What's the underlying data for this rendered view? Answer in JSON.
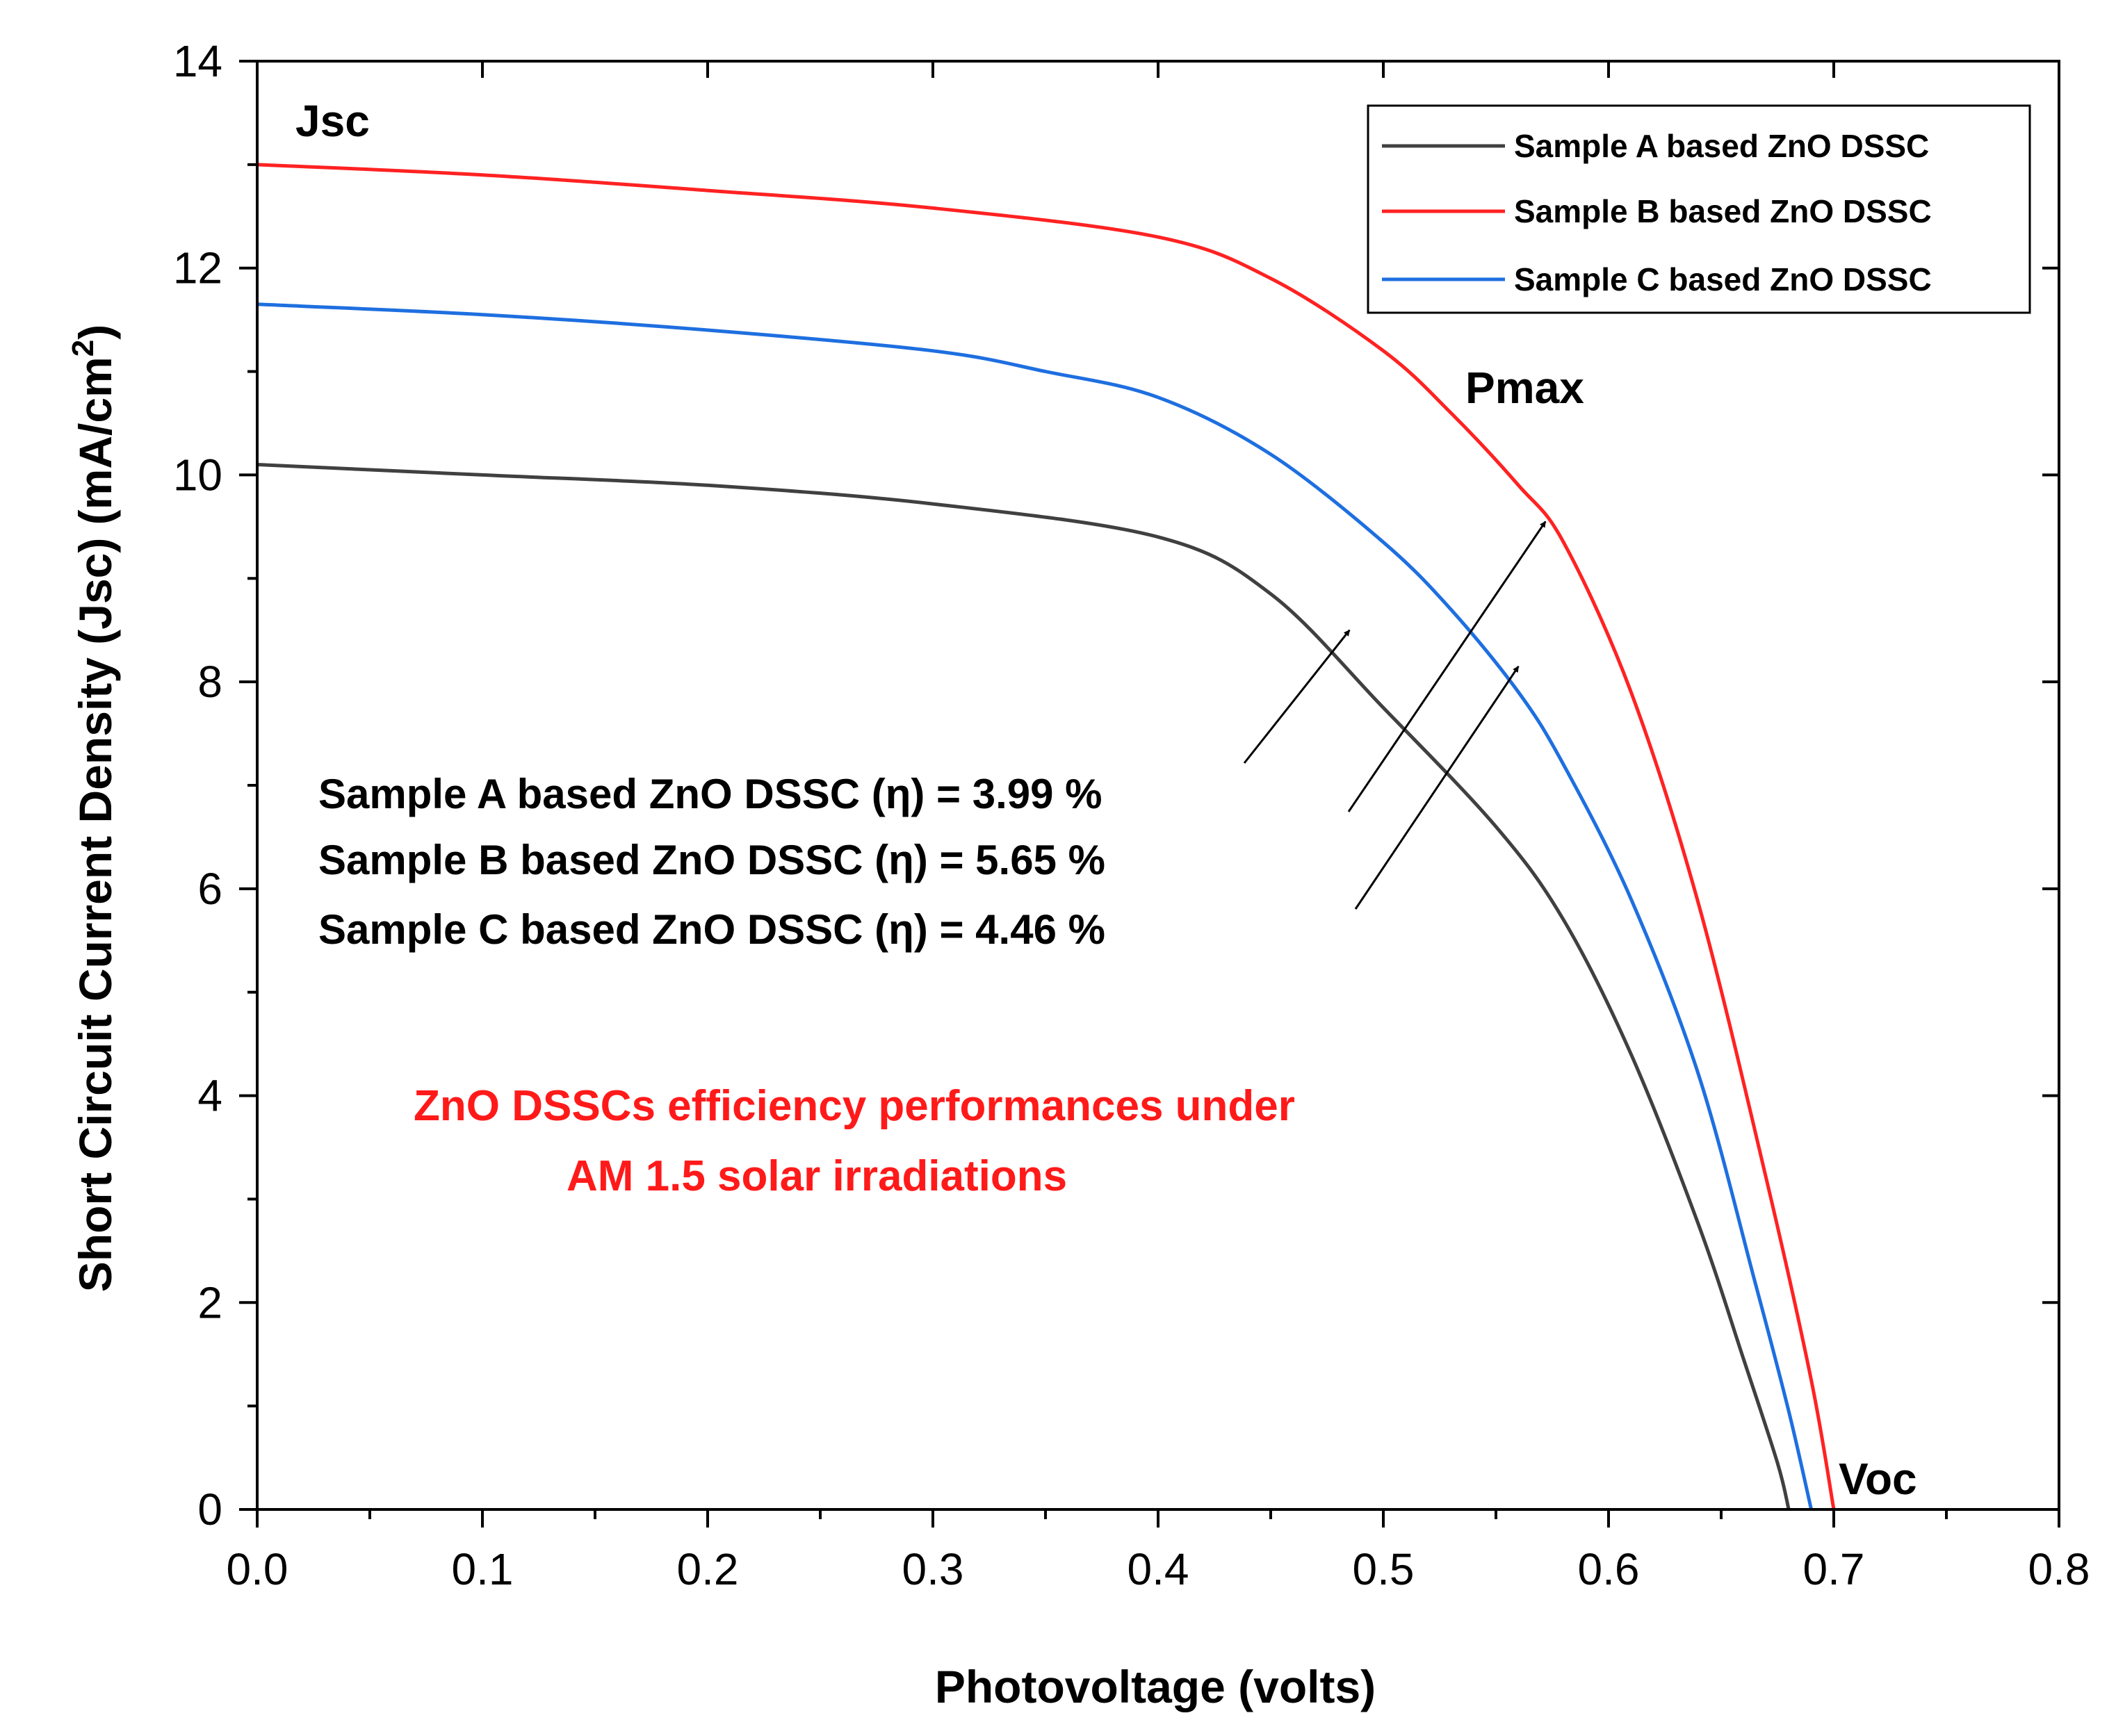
{
  "chart_data": {
    "type": "line",
    "xlabel": "Photovoltage (volts)",
    "ylabel": "Short Circuit Current Density (Jsc) (mA/cm",
    "ylabel_superscript": "2",
    "ylabel_suffix": ")",
    "xlim": [
      0.0,
      0.8
    ],
    "ylim": [
      0,
      14
    ],
    "xticks": [
      0.0,
      0.1,
      0.2,
      0.3,
      0.4,
      0.5,
      0.6,
      0.7,
      0.8
    ],
    "xtick_labels": [
      "0.0",
      "0.1",
      "0.2",
      "0.3",
      "0.4",
      "0.5",
      "0.6",
      "0.7",
      "0.8"
    ],
    "yticks": [
      0,
      2,
      4,
      6,
      8,
      10,
      12,
      14
    ],
    "ytick_labels": [
      "0",
      "2",
      "4",
      "6",
      "8",
      "10",
      "12",
      "14"
    ],
    "grid": false,
    "legend_position": "top-right",
    "series": [
      {
        "name": "Sample A based ZnO DSSC",
        "color": "#404040",
        "x": [
          0.0,
          0.1,
          0.2,
          0.3,
          0.4,
          0.45,
          0.5,
          0.55,
          0.58,
          0.61,
          0.64,
          0.66,
          0.675,
          0.68
        ],
        "y": [
          10.1,
          10.0,
          9.9,
          9.72,
          9.4,
          8.85,
          7.75,
          6.6,
          5.7,
          4.4,
          2.75,
          1.45,
          0.45,
          0.0
        ]
      },
      {
        "name": "Sample B based ZnO DSSC",
        "color": "#ff2222",
        "x": [
          0.0,
          0.1,
          0.2,
          0.3,
          0.4,
          0.45,
          0.5,
          0.53,
          0.56,
          0.58,
          0.61,
          0.64,
          0.67,
          0.69,
          0.7
        ],
        "y": [
          13.0,
          12.9,
          12.75,
          12.58,
          12.3,
          11.9,
          11.2,
          10.6,
          9.9,
          9.35,
          7.9,
          5.85,
          3.2,
          1.25,
          0.0
        ]
      },
      {
        "name": "Sample C based ZnO DSSC",
        "color": "#1e6fe0",
        "x": [
          0.0,
          0.1,
          0.2,
          0.3,
          0.35,
          0.4,
          0.45,
          0.5,
          0.53,
          0.56,
          0.58,
          0.61,
          0.64,
          0.665,
          0.68,
          0.69
        ],
        "y": [
          11.65,
          11.55,
          11.4,
          11.2,
          11.0,
          10.75,
          10.2,
          9.35,
          8.7,
          7.9,
          7.2,
          5.9,
          4.2,
          2.2,
          0.95,
          0.0
        ]
      }
    ],
    "annotations": {
      "jsc": "Jsc",
      "pmax": "Pmax",
      "voc": "Voc",
      "efficiency": [
        "Sample A based ZnO DSSC (η) = 3.99 %",
        "Sample B based ZnO DSSC (η) = 5.65 %",
        "Sample C based ZnO DSSC (η) = 4.46 %"
      ],
      "arrow_targets": [
        {
          "x": 0.485,
          "y": 8.5
        },
        {
          "x": 0.572,
          "y": 9.55
        },
        {
          "x": 0.56,
          "y": 8.15
        }
      ],
      "note_line1": "ZnO DSSCs efficiency performances under",
      "note_line2": "AM 1.5 solar irradiations",
      "note_color": "#ff1a1a"
    }
  }
}
